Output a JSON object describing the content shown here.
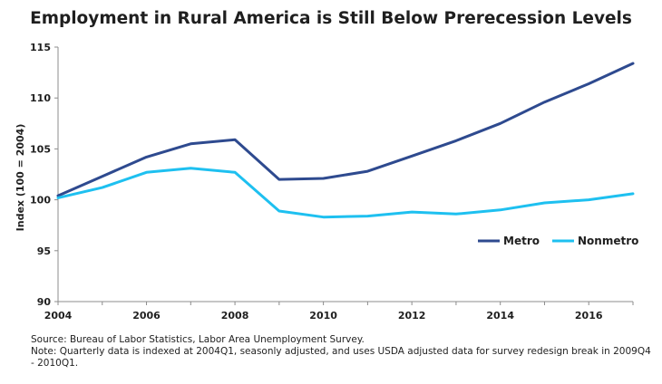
{
  "chart_data": {
    "type": "line",
    "title": "Employment in Rural America is Still Below Prerecession Levels",
    "xlabel": "",
    "ylabel": "Index (100 = 2004)",
    "xlim": [
      2004,
      2017
    ],
    "ylim": [
      90,
      115
    ],
    "x_ticks": [
      "2004",
      "2006",
      "2008",
      "2010",
      "2012",
      "2014",
      "2016"
    ],
    "y_ticks": [
      "90",
      "95",
      "100",
      "105",
      "110",
      "115"
    ],
    "grid": false,
    "legend_position": "right",
    "series": [
      {
        "name": "Metro",
        "color": "#2e4a8f",
        "x": [
          2004,
          2005,
          2006,
          2007,
          2008,
          2009,
          2010,
          2011,
          2012,
          2013,
          2014,
          2015,
          2016,
          2017
        ],
        "y": [
          100.4,
          102.3,
          104.2,
          105.5,
          105.9,
          102.0,
          102.1,
          102.8,
          104.3,
          105.8,
          107.5,
          109.6,
          111.4,
          113.4
        ]
      },
      {
        "name": "Nonmetro",
        "color": "#1ec0f0",
        "x": [
          2004,
          2005,
          2006,
          2007,
          2008,
          2009,
          2010,
          2011,
          2012,
          2013,
          2014,
          2015,
          2016,
          2017
        ],
        "y": [
          100.2,
          101.2,
          102.7,
          103.1,
          102.7,
          98.9,
          98.3,
          98.4,
          98.8,
          98.6,
          99.0,
          99.7,
          100.0,
          100.6
        ]
      }
    ]
  },
  "notes": {
    "source": "Source: Bureau of Labor Statistics, Labor Area Unemployment Survey.",
    "note": "Note: Quarterly data is indexed at 2004Q1, seasonly adjusted, and uses USDA adjusted data for survey redesign break in 2009Q4 - 2010Q1."
  }
}
